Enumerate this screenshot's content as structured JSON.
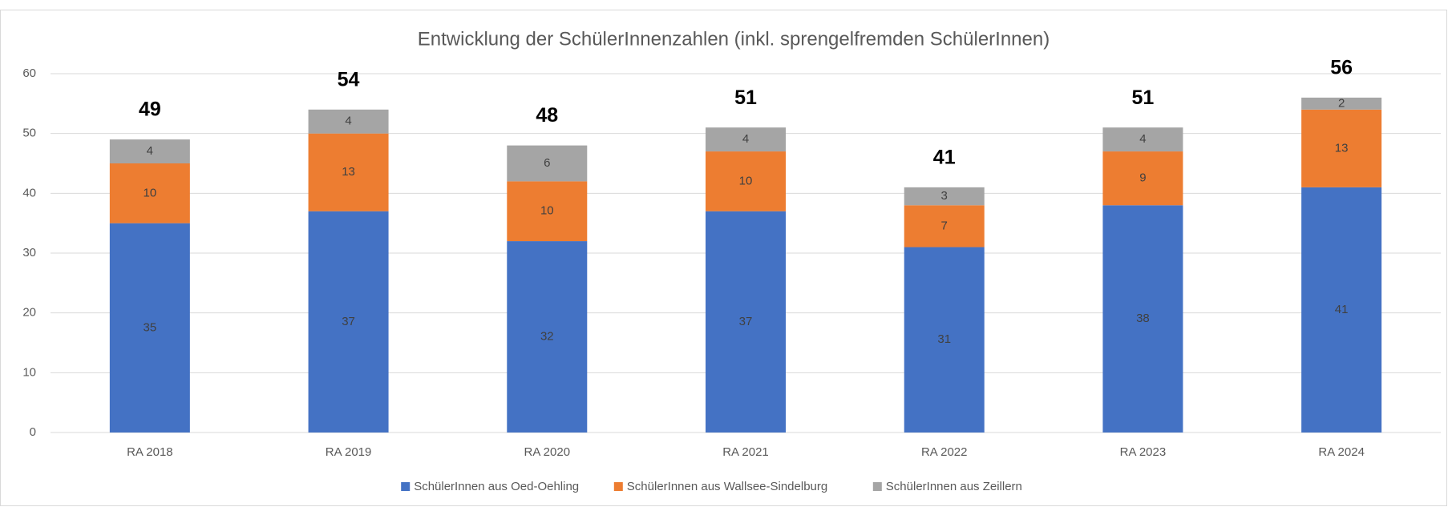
{
  "chart_data": {
    "type": "stacked_bar",
    "title": "Entwicklung der SchülerInnenzahlen (inkl. sprengelfremden SchülerInnen)",
    "categories": [
      "RA 2018",
      "RA 2019",
      "RA 2020",
      "RA 2021",
      "RA 2022",
      "RA 2023",
      "RA 2024"
    ],
    "series": [
      {
        "name": "SchülerInnen aus Oed-Oehling",
        "color": "#4472c4",
        "values": [
          35,
          37,
          32,
          37,
          31,
          38,
          41
        ]
      },
      {
        "name": "SchülerInnen aus Wallsee-Sindelburg",
        "color": "#ed7d31",
        "values": [
          10,
          13,
          10,
          10,
          7,
          9,
          13
        ]
      },
      {
        "name": "SchülerInnen aus Zeillern",
        "color": "#a5a5a5",
        "values": [
          4,
          4,
          6,
          4,
          3,
          4,
          2
        ]
      }
    ],
    "totals": [
      49,
      54,
      48,
      51,
      41,
      51,
      56
    ],
    "ylim": [
      0,
      60
    ],
    "yticks": [
      0,
      10,
      20,
      30,
      40,
      50,
      60
    ],
    "grid": true,
    "legend": "bottom"
  }
}
